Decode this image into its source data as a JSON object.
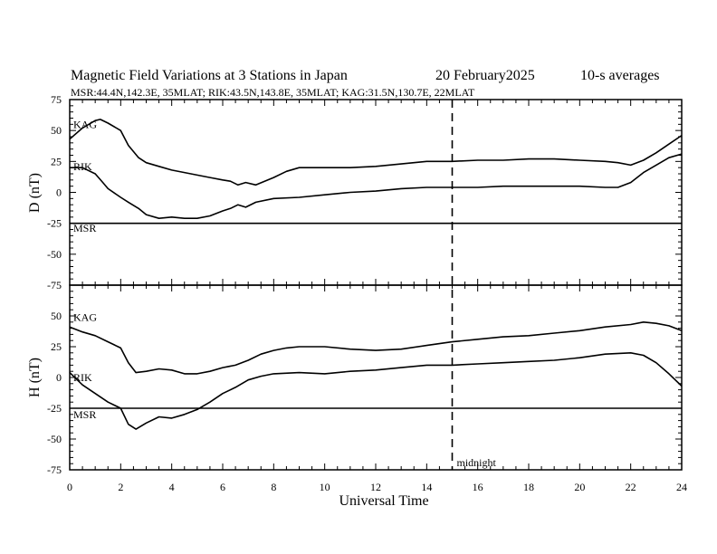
{
  "chart_data": {
    "type": "line",
    "title": "Magnetic Field Variations at 3 Stations in Japan",
    "date": "20 February2025",
    "averaging": "10-s averages",
    "subtitle": "MSR:44.4N,142.3E, 35MLAT;  RIK:43.5N,143.8E, 35MLAT;  KAG:31.5N,130.7E, 22MLAT",
    "xlabel": "Universal Time",
    "xlim": [
      0,
      24
    ],
    "x_ticks": [
      "0",
      "2",
      "4",
      "6",
      "8",
      "10",
      "12",
      "14",
      "16",
      "18",
      "20",
      "22",
      "24"
    ],
    "midnight": {
      "x": 15,
      "label": "midnight"
    },
    "panels": [
      {
        "ylabel": "D (nT)",
        "ylim": [
          -75,
          75
        ],
        "y_ticks": [
          "75",
          "50",
          "25",
          "0",
          "-25",
          "-50",
          "-75"
        ],
        "series": [
          {
            "name": "KAG",
            "x": [
              0,
              0.5,
              1.0,
              1.2,
              1.5,
              2.0,
              2.3,
              2.7,
              3.0,
              3.5,
              4.0,
              4.5,
              5.0,
              5.5,
              6.0,
              6.3,
              6.6,
              6.9,
              7.3,
              8.0,
              8.5,
              9.0,
              9.5,
              10.0,
              11.0,
              12.0,
              13.0,
              14.0,
              15.0,
              16.0,
              17.0,
              18.0,
              19.0,
              20.0,
              21.0,
              21.5,
              22.0,
              22.5,
              23.0,
              23.5,
              24.0
            ],
            "y": [
              43,
              52,
              58,
              59,
              56,
              50,
              38,
              28,
              24,
              21,
              18,
              16,
              14,
              12,
              10,
              9,
              6,
              8,
              6,
              12,
              17,
              20,
              20,
              20,
              20,
              21,
              23,
              25,
              25,
              26,
              26,
              27,
              27,
              26,
              25,
              24,
              22,
              26,
              32,
              39,
              46
            ]
          },
          {
            "name": "RIK",
            "x": [
              0,
              0.5,
              1.0,
              1.3,
              1.5,
              2.0,
              2.3,
              2.7,
              3.0,
              3.5,
              4.0,
              4.5,
              5.0,
              5.5,
              6.0,
              6.3,
              6.6,
              6.9,
              7.3,
              8.0,
              9.0,
              10.0,
              11.0,
              12.0,
              13.0,
              14.0,
              15.0,
              16.0,
              17.0,
              18.0,
              19.0,
              20.0,
              21.0,
              21.5,
              22.0,
              22.5,
              23.0,
              23.5,
              24.0
            ],
            "y": [
              20,
              20,
              15,
              8,
              3,
              -4,
              -8,
              -13,
              -18,
              -21,
              -20,
              -21,
              -21,
              -19,
              -15,
              -13,
              -10,
              -12,
              -8,
              -5,
              -4,
              -2,
              0,
              1,
              3,
              4,
              4,
              4,
              5,
              5,
              5,
              5,
              4,
              4,
              8,
              16,
              22,
              28,
              31
            ]
          },
          {
            "name": "MSR",
            "x": [
              0,
              24
            ],
            "y": [
              -25,
              -25
            ]
          }
        ]
      },
      {
        "ylabel": "H (nT)",
        "ylim": [
          -75,
          75
        ],
        "y_ticks": [
          "50",
          "25",
          "0",
          "-25",
          "-50",
          "-75"
        ],
        "series": [
          {
            "name": "KAG",
            "x": [
              0,
              0.5,
              1.0,
              1.5,
              2.0,
              2.3,
              2.6,
              3.0,
              3.5,
              4.0,
              4.5,
              5.0,
              5.5,
              6.0,
              6.5,
              7.0,
              7.5,
              8.0,
              8.5,
              9.0,
              10.0,
              11.0,
              12.0,
              13.0,
              14.0,
              15.0,
              16.0,
              17.0,
              18.0,
              19.0,
              20.0,
              21.0,
              22.0,
              22.5,
              23.0,
              23.5,
              24.0
            ],
            "y": [
              41,
              37,
              34,
              29,
              24,
              12,
              4,
              5,
              7,
              6,
              3,
              3,
              5,
              8,
              10,
              14,
              19,
              22,
              24,
              25,
              25,
              23,
              22,
              23,
              26,
              29,
              31,
              33,
              34,
              36,
              38,
              41,
              43,
              45,
              44,
              42,
              38
            ]
          },
          {
            "name": "RIK",
            "x": [
              0,
              0.5,
              1.0,
              1.5,
              2.0,
              2.3,
              2.6,
              3.0,
              3.5,
              4.0,
              4.5,
              5.0,
              5.5,
              6.0,
              6.5,
              7.0,
              7.5,
              8.0,
              9.0,
              10.0,
              11.0,
              12.0,
              13.0,
              14.0,
              15.0,
              16.0,
              17.0,
              18.0,
              19.0,
              20.0,
              21.0,
              22.0,
              22.5,
              23.0,
              23.5,
              24.0
            ],
            "y": [
              4,
              -6,
              -13,
              -20,
              -25,
              -38,
              -42,
              -37,
              -32,
              -33,
              -30,
              -26,
              -20,
              -13,
              -8,
              -2,
              1,
              3,
              4,
              3,
              5,
              6,
              8,
              10,
              10,
              11,
              12,
              13,
              14,
              16,
              19,
              20,
              18,
              12,
              3,
              -7
            ]
          },
          {
            "name": "MSR",
            "x": [
              0,
              24
            ],
            "y": [
              -25,
              -25
            ]
          }
        ]
      }
    ]
  }
}
